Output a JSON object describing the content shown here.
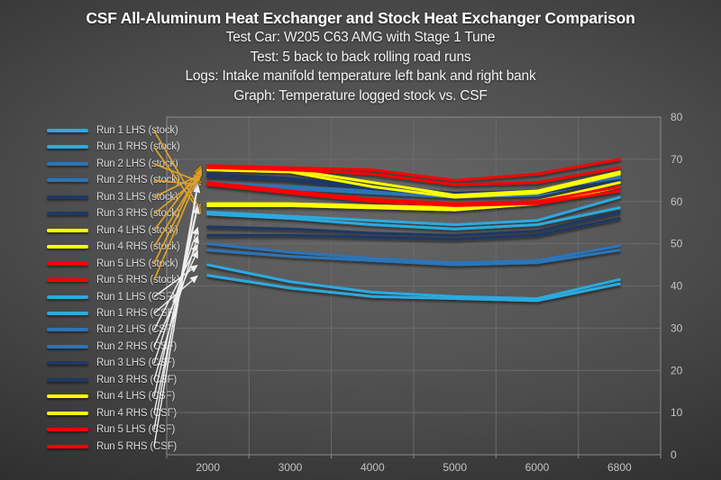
{
  "slide": {
    "title": "CSF All-Aluminum Heat Exchanger and Stock Heat Exchanger Comparison",
    "subtitle_lines": [
      "Test Car: W205 C63 AMG with Stage 1 Tune",
      "Test: 5 back to back rolling road runs",
      "Logs: Intake manifold temperature left bank and right bank",
      "Graph: Temperature logged stock vs. CSF"
    ]
  },
  "colors": {
    "run1_cyan": "#2CAADF",
    "run2_blue": "#2B74B9",
    "run3_navy": "#1F3864",
    "run4_yellow": "#FFFF00",
    "run5_red": "#FE0000",
    "stock_arrow": "#DFA127",
    "csf_arrow": "#EFEFEF",
    "gridline": "#6B6B6B",
    "plot_border": "#8A8A8A",
    "axis_text": "#C3C3C3",
    "legend_text": "#D9D9D9",
    "title_text": "#FFFFFF"
  },
  "chart_data": {
    "type": "line",
    "title": "Temperature logged stock vs. CSF",
    "xlabel": "",
    "ylabel": "",
    "x": [
      2000,
      3000,
      4000,
      5000,
      6000,
      6800
    ],
    "x_tick_labels": [
      "2000",
      "3000",
      "4000",
      "5000",
      "6000",
      "6800"
    ],
    "y_ticks": [
      0,
      10,
      20,
      30,
      40,
      50,
      60,
      70,
      80
    ],
    "ylim": [
      0,
      80
    ],
    "grid": true,
    "legend_position": "left",
    "y_axis_side": "right",
    "series": [
      {
        "name": "Run 1 LHS (stock)",
        "group": "stock",
        "color": "#2CAADF",
        "values": [
          57.5,
          56.5,
          55.5,
          54.5,
          55.5,
          61
        ]
      },
      {
        "name": "Run 1 RHS (stock)",
        "group": "stock",
        "color": "#2CAADF",
        "values": [
          57,
          56,
          54.5,
          53.5,
          54.5,
          58.5
        ]
      },
      {
        "name": "Run 2 LHS (stock)",
        "group": "stock",
        "color": "#2B74B9",
        "values": [
          64.5,
          63.5,
          62.5,
          61.5,
          62,
          66
        ]
      },
      {
        "name": "Run 2 RHS (stock)",
        "group": "stock",
        "color": "#2B74B9",
        "values": [
          64,
          63,
          62,
          61,
          61.5,
          65.5
        ]
      },
      {
        "name": "Run 3 LHS (stock)",
        "group": "stock",
        "color": "#1F3864",
        "values": [
          66.5,
          65.5,
          63.5,
          62,
          62.5,
          66.5
        ]
      },
      {
        "name": "Run 3 RHS (stock)",
        "group": "stock",
        "color": "#1F3864",
        "values": [
          66,
          65,
          63,
          61.5,
          62,
          65
        ]
      },
      {
        "name": "Run 4 LHS (stock)",
        "group": "stock",
        "color": "#FFFF00",
        "values": [
          68,
          67.5,
          64.5,
          61.5,
          62.5,
          67
        ]
      },
      {
        "name": "Run 4 RHS (stock)",
        "group": "stock",
        "color": "#FFFF00",
        "values": [
          67.5,
          67,
          63.5,
          61,
          62,
          66.5
        ]
      },
      {
        "name": "Run 5 LHS (stock)",
        "group": "stock",
        "color": "#FE0000",
        "values": [
          68.5,
          68,
          67.5,
          65,
          66.5,
          70
        ]
      },
      {
        "name": "Run 5 RHS (stock)",
        "group": "stock",
        "color": "#FE0000",
        "values": [
          68,
          67.5,
          66.5,
          64,
          64.5,
          68
        ]
      },
      {
        "name": "Run 1 LHS (CSF)",
        "group": "CSF",
        "color": "#2CAADF",
        "values": [
          45,
          41,
          38.5,
          37.5,
          37,
          41.5
        ]
      },
      {
        "name": "Run 1 RHS (CSF)",
        "group": "CSF",
        "color": "#2CAADF",
        "values": [
          42.5,
          39.5,
          37.5,
          37,
          36.5,
          40.5
        ]
      },
      {
        "name": "Run 2 LHS (CSF)",
        "group": "CSF",
        "color": "#2B74B9",
        "values": [
          50,
          48,
          46.5,
          45.5,
          46,
          49.5
        ]
      },
      {
        "name": "Run 2 RHS (CSF)",
        "group": "CSF",
        "color": "#2B74B9",
        "values": [
          48.5,
          47,
          46,
          45,
          45.5,
          48.5
        ]
      },
      {
        "name": "Run 3 LHS (CSF)",
        "group": "CSF",
        "color": "#1F3864",
        "values": [
          54,
          53.5,
          52.5,
          52,
          53,
          57.5
        ]
      },
      {
        "name": "Run 3 RHS (CSF)",
        "group": "CSF",
        "color": "#1F3864",
        "values": [
          52,
          52,
          51.5,
          51,
          52,
          56
        ]
      },
      {
        "name": "Run 4 LHS (CSF)",
        "group": "CSF",
        "color": "#FFFF00",
        "values": [
          59.5,
          59.5,
          59,
          58.5,
          60,
          64.5
        ]
      },
      {
        "name": "Run 4 RHS (CSF)",
        "group": "CSF",
        "color": "#FFFF00",
        "values": [
          59,
          59,
          58.5,
          58,
          59.5,
          63.5
        ]
      },
      {
        "name": "Run 5 LHS (CSF)",
        "group": "CSF",
        "color": "#FE0000",
        "values": [
          64.5,
          62.5,
          60.5,
          59.5,
          60,
          63.5
        ]
      },
      {
        "name": "Run 5 RHS (CSF)",
        "group": "CSF",
        "color": "#FE0000",
        "values": [
          64,
          62,
          60,
          59,
          59.5,
          62.5
        ]
      }
    ],
    "annotations": {
      "stock_arrows_color_name": "gold",
      "csf_arrows_color_name": "white",
      "description": "An arrow points from each legend entry to the start of its line at 2000 rpm"
    }
  }
}
